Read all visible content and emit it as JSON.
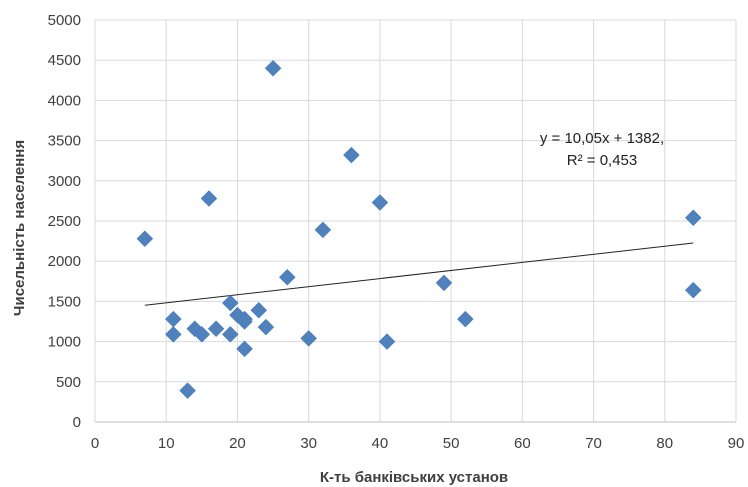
{
  "chart_data": {
    "type": "scatter",
    "xlabel": "К-ть банківських установ",
    "ylabel": "Чисельність населення",
    "xlim": [
      0,
      90
    ],
    "ylim": [
      0,
      5000
    ],
    "x_ticks": [
      0,
      10,
      20,
      30,
      40,
      50,
      60,
      70,
      80,
      90
    ],
    "y_ticks": [
      0,
      500,
      1000,
      1500,
      2000,
      2500,
      3000,
      3500,
      4000,
      4500,
      5000
    ],
    "grid": "vertical-and-horizontal",
    "marker": "diamond",
    "marker_color": "#4f81bd",
    "trendline": {
      "type": "linear",
      "slope": 10.05,
      "intercept": 1382,
      "x_range": [
        7,
        84
      ],
      "equation_label": "y = 10,05x + 1382,",
      "r2_label": "R² = 0,453"
    },
    "points": [
      {
        "x": 7,
        "y": 2280
      },
      {
        "x": 11,
        "y": 1280
      },
      {
        "x": 11,
        "y": 1090
      },
      {
        "x": 13,
        "y": 390
      },
      {
        "x": 14,
        "y": 1160
      },
      {
        "x": 15,
        "y": 1090
      },
      {
        "x": 16,
        "y": 2780
      },
      {
        "x": 17,
        "y": 1160
      },
      {
        "x": 19,
        "y": 1480
      },
      {
        "x": 19,
        "y": 1090
      },
      {
        "x": 20,
        "y": 1330
      },
      {
        "x": 21,
        "y": 1280
      },
      {
        "x": 21,
        "y": 1250
      },
      {
        "x": 21,
        "y": 910
      },
      {
        "x": 23,
        "y": 1390
      },
      {
        "x": 24,
        "y": 1180
      },
      {
        "x": 25,
        "y": 4400
      },
      {
        "x": 27,
        "y": 1800
      },
      {
        "x": 30,
        "y": 1040
      },
      {
        "x": 32,
        "y": 2390
      },
      {
        "x": 36,
        "y": 3320
      },
      {
        "x": 40,
        "y": 2730
      },
      {
        "x": 41,
        "y": 1000
      },
      {
        "x": 49,
        "y": 1730
      },
      {
        "x": 52,
        "y": 1280
      },
      {
        "x": 84,
        "y": 2540
      },
      {
        "x": 84,
        "y": 1640
      }
    ]
  }
}
